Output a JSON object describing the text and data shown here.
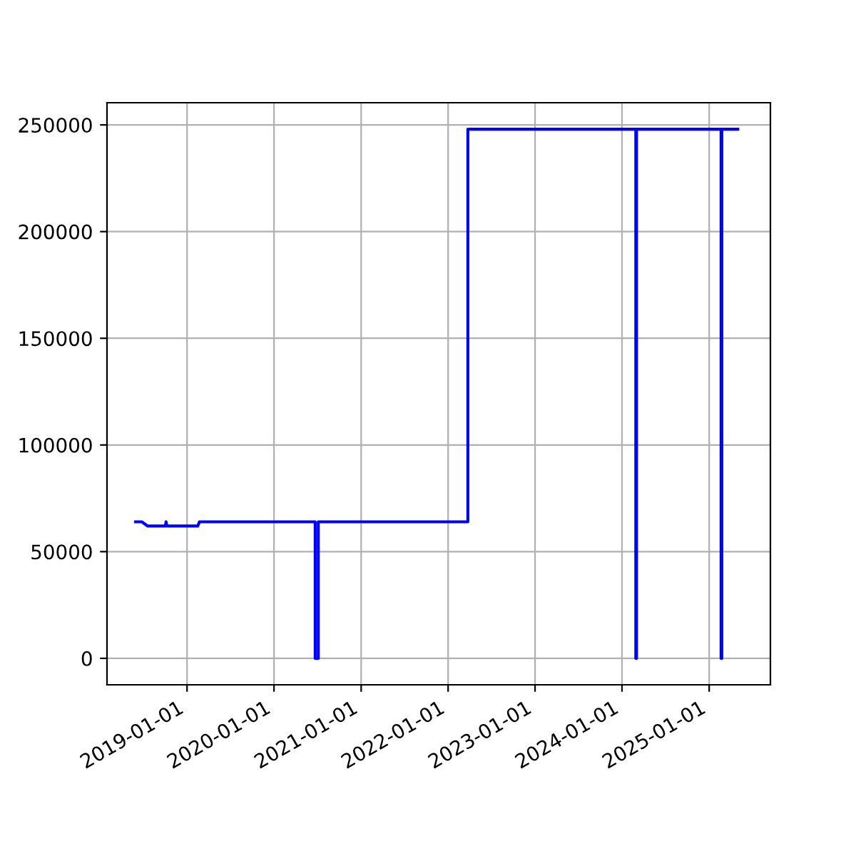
{
  "chart_data": {
    "type": "line",
    "x": [
      "2018-05-30",
      "2018-06-25",
      "2018-07-20",
      "2018-08-10",
      "2018-10-02",
      "2018-10-05",
      "2018-10-08",
      "2019-02-15",
      "2019-02-22",
      "2020-06-22",
      "2020-06-22",
      "2020-07-05",
      "2020-07-05",
      "2022-03-25",
      "2022-03-25",
      "2024-02-28",
      "2024-02-28",
      "2024-03-02",
      "2024-03-02",
      "2025-02-20",
      "2025-02-20",
      "2025-02-23",
      "2025-02-23",
      "2025-05-01"
    ],
    "series": [
      {
        "color": "#0000ff",
        "values": [
          64000,
          64000,
          62000,
          62000,
          62000,
          64000,
          62000,
          62000,
          64000,
          64000,
          0,
          0,
          64000,
          64000,
          248000,
          248000,
          0,
          0,
          248000,
          248000,
          0,
          0,
          248000,
          248000
        ]
      }
    ],
    "xlim": [
      "2018-01-30",
      "2025-09-15"
    ],
    "xticks": [
      "2019-01-01",
      "2020-01-01",
      "2021-01-01",
      "2022-01-01",
      "2023-01-01",
      "2024-01-01",
      "2025-01-01"
    ],
    "ylim": [
      -12400,
      260400
    ],
    "yticks": [
      0,
      50000,
      100000,
      150000,
      200000,
      250000
    ],
    "grid": true,
    "marker": "none",
    "line_style": "solid"
  }
}
